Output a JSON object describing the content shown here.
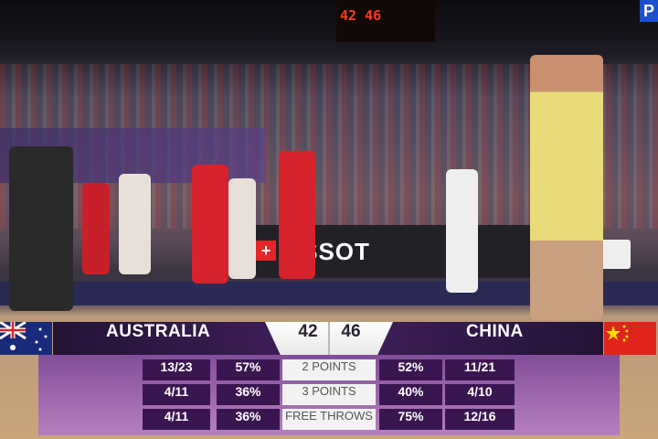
{
  "scoreboard": {
    "display": "42 46"
  },
  "broadcast_badge": "P",
  "banner": {
    "brand": "TISSOT",
    "cross": "+"
  },
  "overlay": {
    "home": {
      "name": "AUSTRALIA",
      "score": "42",
      "flag": "australia-flag-icon"
    },
    "away": {
      "name": "CHINA",
      "score": "46",
      "flag": "china-flag-icon"
    },
    "rows": [
      {
        "label": "2 POINTS",
        "home_made": "13/23",
        "home_pct": "57%",
        "away_pct": "52%",
        "away_made": "11/21"
      },
      {
        "label": "3 POINTS",
        "home_made": "4/11",
        "home_pct": "36%",
        "away_pct": "40%",
        "away_made": "4/10"
      },
      {
        "label": "FREE THROWS",
        "home_made": "4/11",
        "home_pct": "36%",
        "away_pct": "75%",
        "away_made": "12/16"
      }
    ]
  },
  "colors": {
    "header": "#3f1f5a",
    "panel": "#a06cb4",
    "cell": "#3a1650",
    "china": "#e0241c",
    "australia_kit": "#e8dc7a"
  }
}
